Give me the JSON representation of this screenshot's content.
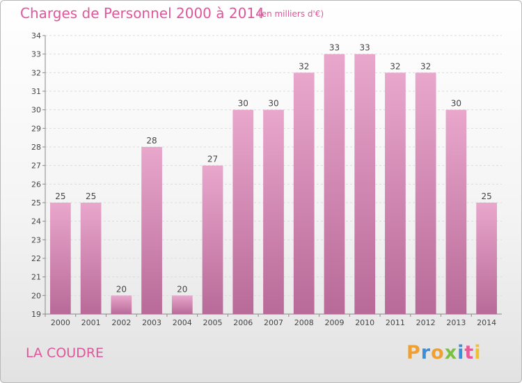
{
  "title": "Charges de Personnel 2000 à 2014",
  "subtitle": "(en milliers d'€)",
  "commune": "LA COUDRE",
  "logo": {
    "letters": [
      "P",
      "r",
      "o",
      "x",
      "i",
      "t",
      "i"
    ],
    "colors": [
      "#f0a030",
      "#3a8fd8",
      "#f0a030",
      "#7cc043",
      "#3a8fd8",
      "#e85a9a",
      "#f0c030"
    ]
  },
  "colors": {
    "bar_top": "#e9a7cc",
    "bar_bottom": "#b86a98",
    "accent": "#e0569a"
  },
  "chart_data": {
    "type": "bar",
    "title": "Charges de Personnel 2000 à 2014",
    "subtitle": "(en milliers d'€)",
    "categories": [
      "2000",
      "2001",
      "2002",
      "2003",
      "2004",
      "2005",
      "2006",
      "2007",
      "2008",
      "2009",
      "2010",
      "2011",
      "2012",
      "2013",
      "2014"
    ],
    "values": [
      25,
      25,
      20,
      28,
      20,
      27,
      30,
      30,
      32,
      33,
      33,
      32,
      32,
      30,
      25
    ],
    "ylim": [
      19,
      34
    ],
    "yticks": [
      19,
      20,
      21,
      22,
      23,
      24,
      25,
      26,
      27,
      28,
      29,
      30,
      31,
      32,
      33,
      34
    ],
    "grid": true,
    "xlabel": "",
    "ylabel": ""
  }
}
